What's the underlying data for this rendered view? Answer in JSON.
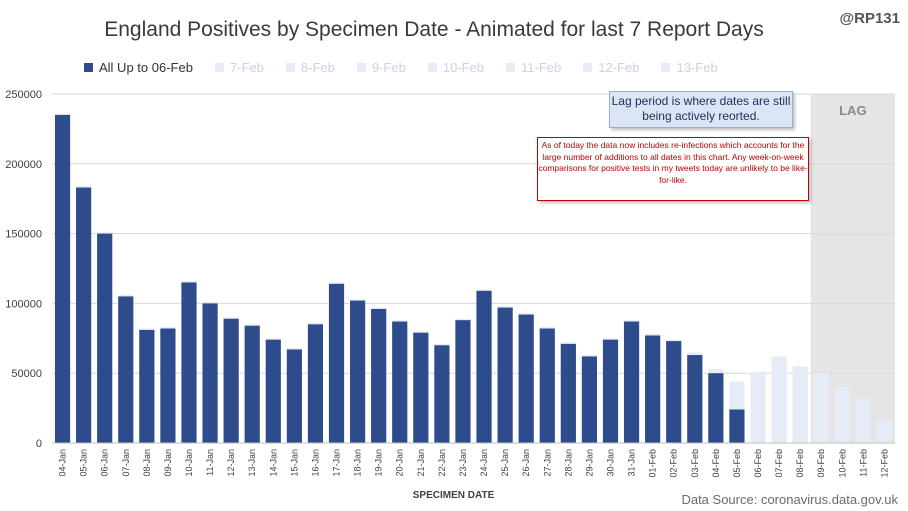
{
  "handle": "@RP131",
  "source": "Data Source: coronavirus.data.gov.uk",
  "lag_note": "Lag period is where dates are still being actively reorted.",
  "reinfection_note": "As of today the data now includes re-infections which accounts for the large number of additions to all dates in this chart. Any week-on-week comparisons for positive tests in my tweets today are unlikely to be like-for-like.",
  "lag_label": "LAG",
  "colors": {
    "main": "#2e4b8c",
    "faded": "#e6ecf5",
    "lag_shade": "#e5e5e5",
    "note_red": "#c00000"
  },
  "chart_data": {
    "type": "bar",
    "title": "England Positives by Specimen Date - Animated for last 7 Report Days",
    "xlabel": "SPECIMEN DATE",
    "ylabel": "",
    "ylim": [
      0,
      250000
    ],
    "yticks": [
      0,
      50000,
      100000,
      150000,
      200000,
      250000
    ],
    "grid": true,
    "legend_position": "top",
    "categories": [
      "04-Jan",
      "05-Jan",
      "06-Jan",
      "07-Jan",
      "08-Jan",
      "09-Jan",
      "10-Jan",
      "11-Jan",
      "12-Jan",
      "13-Jan",
      "14-Jan",
      "15-Jan",
      "16-Jan",
      "17-Jan",
      "18-Jan",
      "19-Jan",
      "20-Jan",
      "21-Jan",
      "22-Jan",
      "23-Jan",
      "24-Jan",
      "25-Jan",
      "26-Jan",
      "27-Jan",
      "28-Jan",
      "29-Jan",
      "30-Jan",
      "31-Jan",
      "01-Feb",
      "02-Feb",
      "03-Feb",
      "04-Feb",
      "05-Feb",
      "06-Feb",
      "07-Feb",
      "08-Feb",
      "09-Feb",
      "10-Feb",
      "11-Feb",
      "12-Feb"
    ],
    "lag_start_category": "09-Feb",
    "series": [
      {
        "name": "All Up to 06-Feb",
        "values": [
          235000,
          183000,
          150000,
          105000,
          81000,
          82000,
          115000,
          100000,
          89000,
          84000,
          74000,
          67000,
          85000,
          114000,
          102000,
          96000,
          87000,
          79000,
          70000,
          88000,
          109000,
          97000,
          92000,
          82000,
          71000,
          62000,
          74000,
          87000,
          77000,
          73000,
          63000,
          50000,
          24000,
          null,
          null,
          null,
          null,
          null,
          null,
          null
        ]
      },
      {
        "name": "7-Feb",
        "values": [
          236000,
          184000,
          151000,
          106000,
          82000,
          83000,
          116000,
          101000,
          90000,
          85000,
          75000,
          68000,
          86000,
          115000,
          103000,
          97000,
          88000,
          80000,
          71000,
          89000,
          110000,
          98000,
          93000,
          83000,
          72000,
          63000,
          75000,
          88000,
          78000,
          74000,
          65000,
          53000,
          44000,
          51000,
          null,
          null,
          null,
          null,
          null,
          null
        ]
      },
      {
        "name": "8-Feb",
        "values": [
          null,
          null,
          null,
          null,
          null,
          null,
          null,
          null,
          null,
          null,
          null,
          null,
          null,
          null,
          null,
          null,
          null,
          null,
          null,
          null,
          null,
          null,
          null,
          null,
          null,
          null,
          null,
          null,
          null,
          null,
          null,
          null,
          null,
          null,
          62000,
          null,
          null,
          null,
          null,
          null
        ]
      },
      {
        "name": "9-Feb",
        "values": [
          null,
          null,
          null,
          null,
          null,
          null,
          null,
          null,
          null,
          null,
          null,
          null,
          null,
          null,
          null,
          null,
          null,
          null,
          null,
          null,
          null,
          null,
          null,
          null,
          null,
          null,
          null,
          null,
          null,
          null,
          null,
          null,
          null,
          null,
          null,
          55000,
          null,
          null,
          null,
          null
        ]
      },
      {
        "name": "10-Feb",
        "values": [
          null,
          null,
          null,
          null,
          null,
          null,
          null,
          null,
          null,
          null,
          null,
          null,
          null,
          null,
          null,
          null,
          null,
          null,
          null,
          null,
          null,
          null,
          null,
          null,
          null,
          null,
          null,
          null,
          null,
          null,
          null,
          null,
          null,
          null,
          null,
          null,
          50000,
          null,
          null,
          null
        ]
      },
      {
        "name": "11-Feb",
        "values": [
          null,
          null,
          null,
          null,
          null,
          null,
          null,
          null,
          null,
          null,
          null,
          null,
          null,
          null,
          null,
          null,
          null,
          null,
          null,
          null,
          null,
          null,
          null,
          null,
          null,
          null,
          null,
          null,
          null,
          null,
          null,
          null,
          null,
          null,
          null,
          null,
          null,
          40000,
          null,
          null
        ]
      },
      {
        "name": "12-Feb",
        "values": [
          null,
          null,
          null,
          null,
          null,
          null,
          null,
          null,
          null,
          null,
          null,
          null,
          null,
          null,
          null,
          null,
          null,
          null,
          null,
          null,
          null,
          null,
          null,
          null,
          null,
          null,
          null,
          null,
          null,
          null,
          null,
          null,
          null,
          null,
          null,
          null,
          null,
          null,
          32000,
          null
        ]
      },
      {
        "name": "13-Feb",
        "values": [
          null,
          null,
          null,
          null,
          null,
          null,
          null,
          null,
          null,
          null,
          null,
          null,
          null,
          null,
          null,
          null,
          null,
          null,
          null,
          null,
          null,
          null,
          null,
          null,
          null,
          null,
          null,
          null,
          null,
          null,
          null,
          null,
          null,
          null,
          null,
          null,
          null,
          null,
          null,
          16000
        ]
      }
    ]
  }
}
